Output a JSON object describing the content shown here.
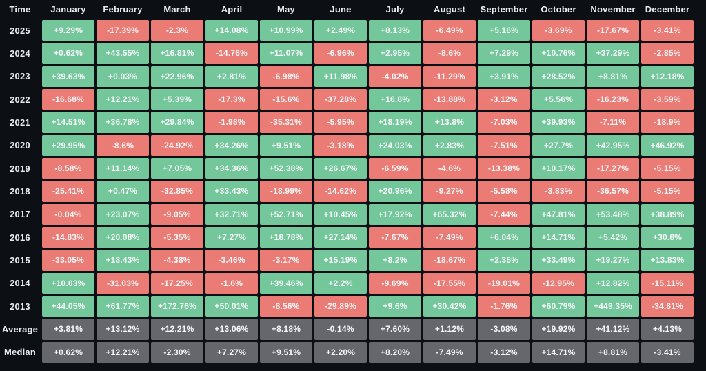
{
  "colors": {
    "background": "#0c0f13",
    "positive": "#74c79b",
    "negative": "#eb7c75",
    "summary": "#65676c",
    "cell_text": "#f4f6f8",
    "header_text": "#e9ebee"
  },
  "table": {
    "corner_label": "Time",
    "columns": [
      "January",
      "February",
      "March",
      "April",
      "May",
      "June",
      "July",
      "August",
      "September",
      "October",
      "November",
      "December"
    ],
    "rows": [
      {
        "label": "2025",
        "type": "year",
        "values": [
          "+9.29%",
          "-17.39%",
          "-2.3%",
          "+14.08%",
          "+10.99%",
          "+2.49%",
          "+8.13%",
          "-6.49%",
          "+5.16%",
          "-3.69%",
          "-17.67%",
          "-3.41%"
        ]
      },
      {
        "label": "2024",
        "type": "year",
        "values": [
          "+0.62%",
          "+43.55%",
          "+16.81%",
          "-14.76%",
          "+11.07%",
          "-6.96%",
          "+2.95%",
          "-8.6%",
          "+7.29%",
          "+10.76%",
          "+37.29%",
          "-2.85%"
        ]
      },
      {
        "label": "2023",
        "type": "year",
        "values": [
          "+39.63%",
          "+0.03%",
          "+22.96%",
          "+2.81%",
          "-6.98%",
          "+11.98%",
          "-4.02%",
          "-11.29%",
          "+3.91%",
          "+28.52%",
          "+8.81%",
          "+12.18%"
        ]
      },
      {
        "label": "2022",
        "type": "year",
        "values": [
          "-16.68%",
          "+12.21%",
          "+5.39%",
          "-17.3%",
          "-15.6%",
          "-37.28%",
          "+16.8%",
          "-13.88%",
          "-3.12%",
          "+5.56%",
          "-16.23%",
          "-3.59%"
        ]
      },
      {
        "label": "2021",
        "type": "year",
        "values": [
          "+14.51%",
          "+36.78%",
          "+29.84%",
          "-1.98%",
          "-35.31%",
          "-5.95%",
          "+18.19%",
          "+13.8%",
          "-7.03%",
          "+39.93%",
          "-7.11%",
          "-18.9%"
        ]
      },
      {
        "label": "2020",
        "type": "year",
        "values": [
          "+29.95%",
          "-8.6%",
          "-24.92%",
          "+34.26%",
          "+9.51%",
          "-3.18%",
          "+24.03%",
          "+2.83%",
          "-7.51%",
          "+27.7%",
          "+42.95%",
          "+46.92%"
        ]
      },
      {
        "label": "2019",
        "type": "year",
        "values": [
          "-8.58%",
          "+11.14%",
          "+7.05%",
          "+34.36%",
          "+52.38%",
          "+26.67%",
          "-6.59%",
          "-4.6%",
          "-13.38%",
          "+10.17%",
          "-17.27%",
          "-5.15%"
        ]
      },
      {
        "label": "2018",
        "type": "year",
        "values": [
          "-25.41%",
          "+0.47%",
          "-32.85%",
          "+33.43%",
          "-18.99%",
          "-14.62%",
          "+20.96%",
          "-9.27%",
          "-5.58%",
          "-3.83%",
          "-36.57%",
          "-5.15%"
        ]
      },
      {
        "label": "2017",
        "type": "year",
        "values": [
          "-0.04%",
          "+23.07%",
          "-9.05%",
          "+32.71%",
          "+52.71%",
          "+10.45%",
          "+17.92%",
          "+65.32%",
          "-7.44%",
          "+47.81%",
          "+53.48%",
          "+38.89%"
        ]
      },
      {
        "label": "2016",
        "type": "year",
        "values": [
          "-14.83%",
          "+20.08%",
          "-5.35%",
          "+7.27%",
          "+18.78%",
          "+27.14%",
          "-7.67%",
          "-7.49%",
          "+6.04%",
          "+14.71%",
          "+5.42%",
          "+30.8%"
        ]
      },
      {
        "label": "2015",
        "type": "year",
        "values": [
          "-33.05%",
          "+18.43%",
          "-4.38%",
          "-3.46%",
          "-3.17%",
          "+15.19%",
          "+8.2%",
          "-18.67%",
          "+2.35%",
          "+33.49%",
          "+19.27%",
          "+13.83%"
        ]
      },
      {
        "label": "2014",
        "type": "year",
        "values": [
          "+10.03%",
          "-31.03%",
          "-17.25%",
          "-1.6%",
          "+39.46%",
          "+2.2%",
          "-9.69%",
          "-17.55%",
          "-19.01%",
          "-12.95%",
          "+12.82%",
          "-15.11%"
        ]
      },
      {
        "label": "2013",
        "type": "year",
        "values": [
          "+44.05%",
          "+61.77%",
          "+172.76%",
          "+50.01%",
          "-8.56%",
          "-29.89%",
          "+9.6%",
          "+30.42%",
          "-1.76%",
          "+60.79%",
          "+449.35%",
          "-34.81%"
        ]
      },
      {
        "label": "Average",
        "type": "summary",
        "values": [
          "+3.81%",
          "+13.12%",
          "+12.21%",
          "+13.06%",
          "+8.18%",
          "-0.14%",
          "+7.60%",
          "+1.12%",
          "-3.08%",
          "+19.92%",
          "+41.12%",
          "+4.13%"
        ]
      },
      {
        "label": "Median",
        "type": "summary",
        "values": [
          "+0.62%",
          "+12.21%",
          "-2.30%",
          "+7.27%",
          "+9.51%",
          "+2.20%",
          "+8.20%",
          "-7.49%",
          "-3.12%",
          "+14.71%",
          "+8.81%",
          "-3.41%"
        ]
      }
    ]
  },
  "chart_data": {
    "type": "heatmap",
    "x_categories": [
      "January",
      "February",
      "March",
      "April",
      "May",
      "June",
      "July",
      "August",
      "September",
      "October",
      "November",
      "December"
    ],
    "y_categories": [
      "2025",
      "2024",
      "2023",
      "2022",
      "2021",
      "2020",
      "2019",
      "2018",
      "2017",
      "2016",
      "2015",
      "2014",
      "2013",
      "Average",
      "Median"
    ],
    "values_percent": [
      [
        9.29,
        -17.39,
        -2.3,
        14.08,
        10.99,
        2.49,
        8.13,
        -6.49,
        5.16,
        -3.69,
        -17.67,
        -3.41
      ],
      [
        0.62,
        43.55,
        16.81,
        -14.76,
        11.07,
        -6.96,
        2.95,
        -8.6,
        7.29,
        10.76,
        37.29,
        -2.85
      ],
      [
        39.63,
        0.03,
        22.96,
        2.81,
        -6.98,
        11.98,
        -4.02,
        -11.29,
        3.91,
        28.52,
        8.81,
        12.18
      ],
      [
        -16.68,
        12.21,
        5.39,
        -17.3,
        -15.6,
        -37.28,
        16.8,
        -13.88,
        -3.12,
        5.56,
        -16.23,
        -3.59
      ],
      [
        14.51,
        36.78,
        29.84,
        -1.98,
        -35.31,
        -5.95,
        18.19,
        13.8,
        -7.03,
        39.93,
        -7.11,
        -18.9
      ],
      [
        29.95,
        -8.6,
        -24.92,
        34.26,
        9.51,
        -3.18,
        24.03,
        2.83,
        -7.51,
        27.7,
        42.95,
        46.92
      ],
      [
        -8.58,
        11.14,
        7.05,
        34.36,
        52.38,
        26.67,
        -6.59,
        -4.6,
        -13.38,
        10.17,
        -17.27,
        -5.15
      ],
      [
        -25.41,
        0.47,
        -32.85,
        33.43,
        -18.99,
        -14.62,
        20.96,
        -9.27,
        -5.58,
        -3.83,
        -36.57,
        -5.15
      ],
      [
        -0.04,
        23.07,
        -9.05,
        32.71,
        52.71,
        10.45,
        17.92,
        65.32,
        -7.44,
        47.81,
        53.48,
        38.89
      ],
      [
        -14.83,
        20.08,
        -5.35,
        7.27,
        18.78,
        27.14,
        -7.67,
        -7.49,
        6.04,
        14.71,
        5.42,
        30.8
      ],
      [
        -33.05,
        18.43,
        -4.38,
        -3.46,
        -3.17,
        15.19,
        8.2,
        -18.67,
        2.35,
        33.49,
        19.27,
        13.83
      ],
      [
        10.03,
        -31.03,
        -17.25,
        -1.6,
        39.46,
        2.2,
        -9.69,
        -17.55,
        -19.01,
        -12.95,
        12.82,
        -15.11
      ],
      [
        44.05,
        61.77,
        172.76,
        50.01,
        -8.56,
        -29.89,
        9.6,
        30.42,
        -1.76,
        60.79,
        449.35,
        -34.81
      ],
      [
        3.81,
        13.12,
        12.21,
        13.06,
        8.18,
        -0.14,
        7.6,
        1.12,
        -3.08,
        19.92,
        41.12,
        4.13
      ],
      [
        0.62,
        12.21,
        -2.3,
        7.27,
        9.51,
        2.2,
        8.2,
        -7.49,
        -3.12,
        14.71,
        8.81,
        -3.41
      ]
    ],
    "legend": "none",
    "grid": "off",
    "color_scale": {
      "positive": "#74c79b",
      "negative": "#eb7c75",
      "summary_rows": "#65676c"
    }
  }
}
